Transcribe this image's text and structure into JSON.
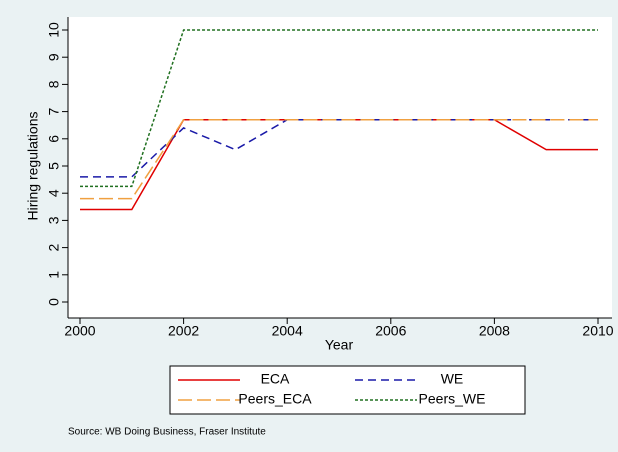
{
  "chart_data": {
    "type": "line",
    "x_label": "Year",
    "y_label": "Hiring regulations",
    "x": [
      2000,
      2001,
      2002,
      2003,
      2004,
      2005,
      2006,
      2007,
      2008,
      2009,
      2010
    ],
    "series": [
      {
        "name": "ECA",
        "color": "#e00000",
        "dash": "none",
        "values": [
          3.4,
          3.4,
          6.7,
          6.7,
          6.7,
          6.7,
          6.7,
          6.7,
          6.7,
          5.6,
          5.6
        ]
      },
      {
        "name": "WE",
        "color": "#1a1aa8",
        "dash": "8,5",
        "values": [
          4.6,
          4.6,
          6.4,
          5.6,
          6.7,
          6.7,
          6.7,
          6.7,
          6.7,
          6.7,
          6.7
        ]
      },
      {
        "name": "Peers_ECA",
        "color": "#f0a040",
        "dash": "14,5",
        "values": [
          3.8,
          3.8,
          6.7,
          6.7,
          6.7,
          6.7,
          6.7,
          6.7,
          6.7,
          6.7,
          6.7
        ]
      },
      {
        "name": "Peers_WE",
        "color": "#207020",
        "dash": "3,2",
        "values": [
          4.25,
          4.25,
          10,
          10,
          10,
          10,
          10,
          10,
          10,
          10,
          10
        ]
      }
    ],
    "xlim": [
      2000,
      2010
    ],
    "xticks": [
      2000,
      2002,
      2004,
      2006,
      2008,
      2010
    ],
    "ylim": [
      0,
      10
    ],
    "yticks": [
      0,
      1,
      2,
      3,
      4,
      5,
      6,
      7,
      8,
      9,
      10
    ],
    "note": "Source: WB Doing Business, Fraser Institute"
  }
}
